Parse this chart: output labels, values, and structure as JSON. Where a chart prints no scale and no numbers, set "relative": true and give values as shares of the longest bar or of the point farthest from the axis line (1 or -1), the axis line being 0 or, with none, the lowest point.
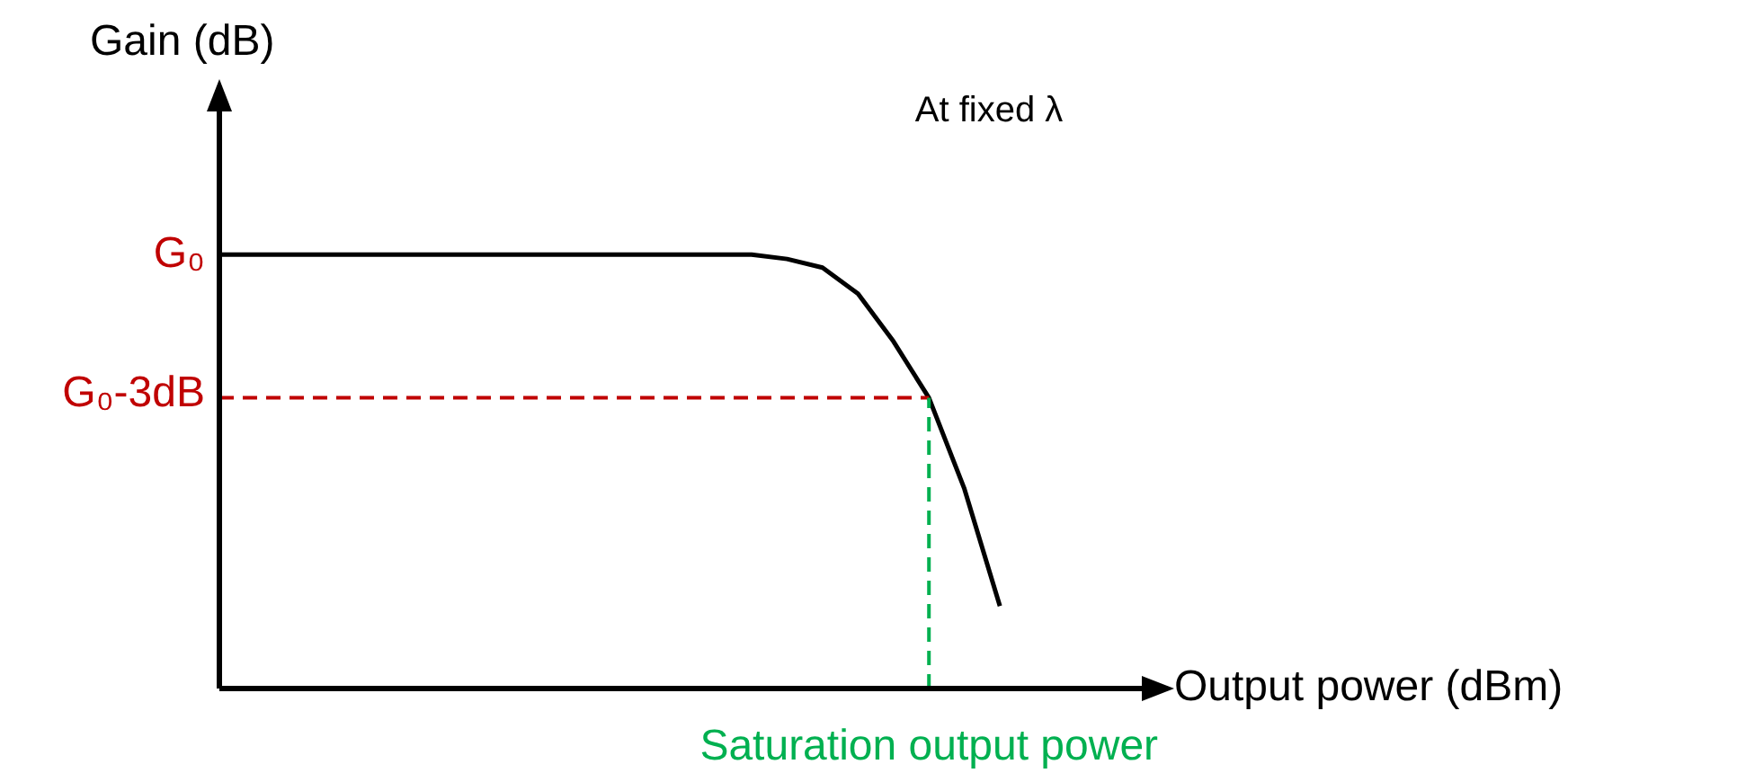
{
  "chart_data": {
    "type": "line",
    "relative": true,
    "xlabel": "Output power (dBm)",
    "ylabel": "Gain (dB)",
    "categories": [
      null,
      null,
      null,
      null,
      null,
      null,
      null,
      null,
      null,
      null,
      null,
      null,
      null,
      null,
      null,
      null,
      null,
      null,
      null,
      null,
      null,
      null,
      null,
      null,
      null,
      null,
      null
    ],
    "tick_labels": false,
    "legend": false,
    "marker": "none",
    "line_style": "solid",
    "series": [
      {
        "color": "#000000",
        "values": [
          1,
          1,
          1,
          1,
          1,
          1,
          1,
          1,
          1,
          1,
          1,
          1,
          1,
          1,
          1,
          1,
          0.99,
          0.97,
          0.91,
          0.8,
          0.67,
          0.46,
          0.19,
          null,
          null,
          null,
          null
        ]
      }
    ],
    "ref_lines": [
      {
        "axis": "y",
        "value": 0.67,
        "label": "G₀-3dB",
        "color": "#c00000",
        "line_style": "dashed"
      }
    ],
    "annotations": [
      "At fixed λ",
      "G₀",
      "Saturation output power"
    ]
  }
}
